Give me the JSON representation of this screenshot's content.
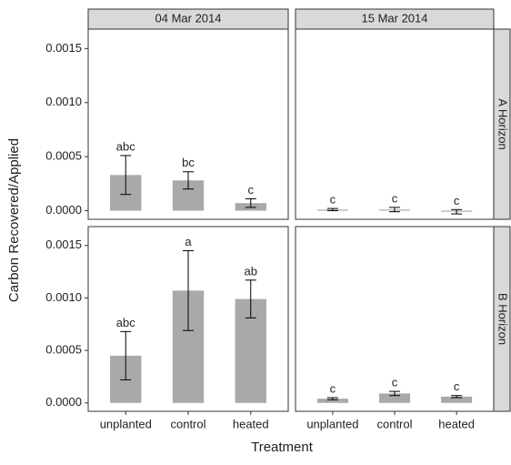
{
  "chart_data": {
    "type": "bar",
    "x_label": "Treatment",
    "y_label": "Carbon Recovered/Applied",
    "categories": [
      "unplanted",
      "control",
      "heated"
    ],
    "columns": [
      "04 Mar 2014",
      "15 Mar 2014"
    ],
    "rows": [
      "A Horizon",
      "B Horizon"
    ],
    "ylim": [
      -8e-05,
      0.00168
    ],
    "yticks": [
      {
        "value": 0,
        "label": "0.0000"
      },
      {
        "value": 0.0005,
        "label": "0.0005"
      },
      {
        "value": 0.001,
        "label": "0.0010"
      },
      {
        "value": 0.0015,
        "label": "0.0015"
      }
    ],
    "color": "#a9a9a9",
    "panels": [
      [
        {
          "values": [
            0.00033,
            0.00028,
            7e-05
          ],
          "errors": [
            0.00018,
            8e-05,
            4e-05
          ],
          "group_labels": [
            "abc",
            "bc",
            "c"
          ]
        },
        {
          "values": [
            1e-05,
            1e-05,
            -1e-05
          ],
          "errors": [
            1e-05,
            2e-05,
            2e-05
          ],
          "group_labels": [
            "c",
            "c",
            "c"
          ]
        }
      ],
      [
        {
          "values": [
            0.00045,
            0.00107,
            0.00099
          ],
          "errors": [
            0.00023,
            0.00038,
            0.00018
          ],
          "group_labels": [
            "abc",
            "a",
            "ab"
          ]
        },
        {
          "values": [
            4e-05,
            9e-05,
            6e-05
          ],
          "errors": [
            1e-05,
            2e-05,
            1e-05
          ],
          "group_labels": [
            "c",
            "c",
            "c"
          ]
        }
      ]
    ]
  }
}
